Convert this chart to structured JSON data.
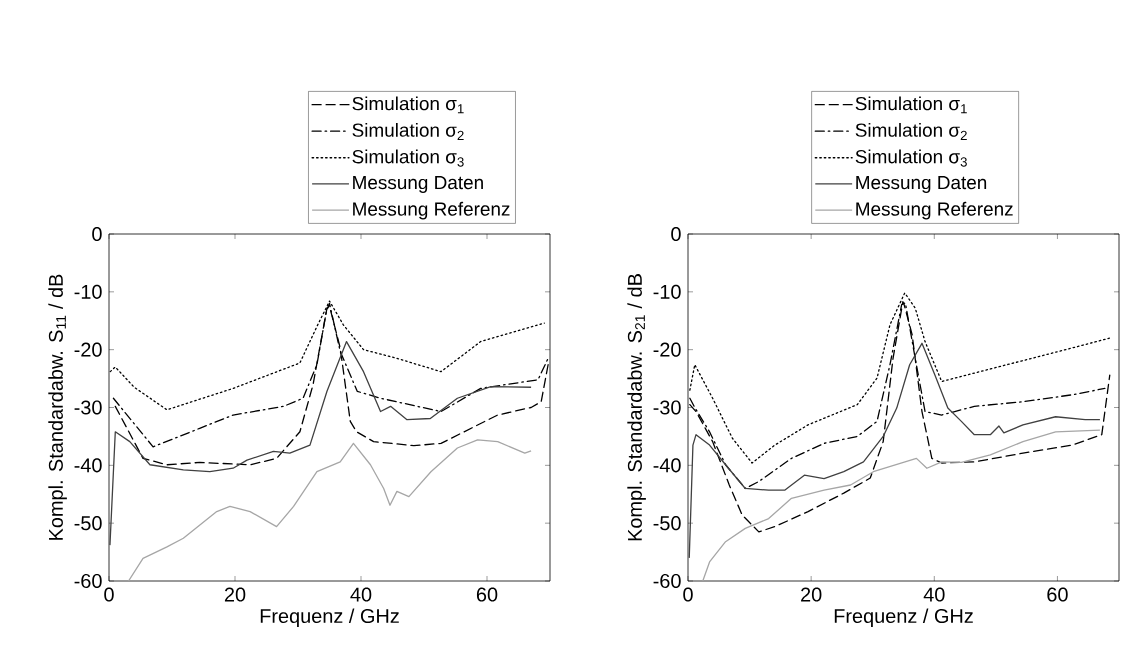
{
  "chart_data": [
    {
      "type": "line",
      "xlabel": "Frequenz / GHz",
      "ylabel": "Kompl. Standardabw. S$_{11}$ / dB",
      "xlim": [
        0,
        70
      ],
      "ylim": [
        -60,
        0
      ],
      "xticks": [
        0,
        20,
        40,
        60
      ],
      "yticks": [
        -60,
        -50,
        -40,
        -30,
        -20,
        -10,
        0
      ],
      "grid": false,
      "legend": "top",
      "marker": "none",
      "series": [
        {
          "name": "Simulation σ$_{1}$",
          "color": "#000000",
          "line_style": "dashed",
          "x": [
            1,
            5.4,
            9.2,
            14.4,
            22.4,
            26.6,
            30.3,
            32.4,
            34.6,
            35,
            36.7,
            38.3,
            39.3,
            42,
            48.4,
            52.7,
            61.7,
            67,
            68.6,
            69.7
          ],
          "values": [
            -29.8,
            -38.8,
            -39.9,
            -39.5,
            -39.9,
            -38.8,
            -34.2,
            -26,
            -12.8,
            -12.5,
            -19.7,
            -32.4,
            -34.2,
            -35.9,
            -36.6,
            -36.2,
            -31.3,
            -30,
            -29,
            -22.6
          ]
        },
        {
          "name": "Simulation σ$_{2}$",
          "color": "#000000",
          "line_style": "dashdot",
          "x": [
            0.7,
            7,
            14.4,
            19.7,
            27.7,
            30.8,
            33,
            34.5,
            35,
            36.7,
            39.4,
            43.1,
            52.7,
            59,
            68.1,
            69.7
          ],
          "values": [
            -28.4,
            -36.8,
            -33.6,
            -31.3,
            -29.8,
            -28.4,
            -22.6,
            -13.4,
            -12,
            -20.3,
            -27.2,
            -28.4,
            -30.7,
            -26.7,
            -25.2,
            -21.5
          ]
        },
        {
          "name": "Simulation σ$_{3}$",
          "color": "#000000",
          "line_style": "dotted",
          "x": [
            0.2,
            1,
            4,
            9.2,
            19.7,
            30.3,
            33,
            35,
            37.2,
            40.4,
            45.7,
            52.7,
            59,
            69.1
          ],
          "values": [
            -23.8,
            -23,
            -26.5,
            -30.4,
            -26.7,
            -22.3,
            -16,
            -11.6,
            -15.7,
            -20,
            -21.5,
            -23.8,
            -18.6,
            -15.4
          ]
        },
        {
          "name": "Messung Daten",
          "color": "#404040",
          "line_style": "solid",
          "x": [
            0.15,
            1,
            3.3,
            6.5,
            11.8,
            16,
            19.7,
            21.9,
            26.1,
            28.7,
            31.9,
            34.6,
            37.7,
            40.4,
            43.1,
            44.7,
            47.3,
            51,
            55.3,
            60.6,
            67
          ],
          "values": [
            -53.8,
            -34.2,
            -35.9,
            -39.9,
            -40.8,
            -41.1,
            -40.5,
            -39.1,
            -37.6,
            -37.9,
            -36.5,
            -27.2,
            -18.6,
            -23.8,
            -30.7,
            -29.8,
            -32.1,
            -31.9,
            -28.4,
            -26.4,
            -26.5
          ]
        },
        {
          "name": "Messung Referenz",
          "color": "#a6a6a6",
          "line_style": "solid",
          "x": [
            3.1,
            5.4,
            9.2,
            11.8,
            17.1,
            19.2,
            22.4,
            26.6,
            29.3,
            33,
            36.7,
            38.8,
            41.5,
            43.6,
            44.6,
            45.7,
            47.6,
            51.1,
            55.3,
            58.5,
            61.7,
            66,
            67
          ],
          "values": [
            -60,
            -56.1,
            -54.1,
            -52.6,
            -48,
            -47.1,
            -48,
            -50.6,
            -47.1,
            -41.1,
            -39.4,
            -36.2,
            -39.9,
            -44,
            -46.9,
            -44.5,
            -45.4,
            -41.1,
            -37,
            -35.6,
            -35.9,
            -37.9,
            -37.5
          ]
        }
      ]
    },
    {
      "type": "line",
      "xlabel": "Frequenz / GHz",
      "ylabel": "Kompl. Standardabw. S$_{21}$ / dB",
      "xlim": [
        0,
        70
      ],
      "ylim": [
        -60,
        0
      ],
      "xticks": [
        0,
        20,
        40,
        60
      ],
      "yticks": [
        -60,
        -50,
        -40,
        -30,
        -20,
        -10,
        0
      ],
      "grid": false,
      "legend": "top",
      "marker": "none",
      "series": [
        {
          "name": "Simulation σ$_{1}$",
          "color": "#000000",
          "line_style": "dashed",
          "x": [
            0.3,
            1.3,
            4,
            6.7,
            8.8,
            11.5,
            14.1,
            19.5,
            25.3,
            29.6,
            31.7,
            33.3,
            34.9,
            35.1,
            36.4,
            38,
            39.6,
            41.2,
            46.5,
            54.4,
            62.4,
            67.2,
            68.5
          ],
          "values": [
            -29.5,
            -30.7,
            -35.9,
            -43.4,
            -48.6,
            -51.5,
            -50.6,
            -48,
            -44.8,
            -42.2,
            -35.9,
            -21.5,
            -11.7,
            -12.2,
            -17.4,
            -30.7,
            -38.8,
            -39.6,
            -39.4,
            -37.9,
            -36.5,
            -34.7,
            -24.4
          ]
        },
        {
          "name": "Simulation σ$_{2}$",
          "color": "#000000",
          "line_style": "dashdot",
          "x": [
            0.3,
            1.1,
            3.5,
            6.1,
            9.3,
            11.5,
            16.8,
            22.1,
            27.5,
            30.7,
            32.8,
            34.7,
            35.3,
            36.9,
            38.5,
            41.2,
            46.5,
            54.4,
            62.4,
            67.7
          ],
          "values": [
            -28.4,
            -30,
            -34.2,
            -39.9,
            -44,
            -42.8,
            -38.8,
            -36.2,
            -35,
            -32.4,
            -22.6,
            -12.2,
            -11.9,
            -21.5,
            -30.7,
            -31.3,
            -29.8,
            -29,
            -27.8,
            -26.7
          ]
        },
        {
          "name": "Simulation σ$_{3}$",
          "color": "#000000",
          "line_style": "dotted",
          "x": [
            0.3,
            1.1,
            4,
            7.2,
            10.4,
            14.1,
            19.5,
            27.5,
            30.7,
            32.8,
            35.2,
            36.9,
            38.5,
            41.2,
            51.8,
            62.4,
            68.5
          ],
          "values": [
            -27,
            -22.6,
            -28.4,
            -35.3,
            -39.6,
            -36.5,
            -33,
            -29.5,
            -24.9,
            -15.7,
            -10.2,
            -12.8,
            -18.6,
            -25.5,
            -22.6,
            -19.7,
            -18
          ]
        },
        {
          "name": "Messung Daten",
          "color": "#404040",
          "line_style": "solid",
          "x": [
            0.2,
            0.8,
            1.3,
            3.5,
            6.1,
            9.3,
            13.1,
            15.7,
            18.9,
            22.1,
            25.3,
            28.5,
            31.7,
            33.9,
            36,
            38,
            40.1,
            42.2,
            44.4,
            46.5,
            49.1,
            50.5,
            51.3,
            54.4,
            59.7,
            64.5,
            66.9
          ],
          "values": [
            -56,
            -36.5,
            -34.7,
            -36.5,
            -39.9,
            -44,
            -44.3,
            -44.3,
            -41.7,
            -42.3,
            -41.1,
            -39.4,
            -35,
            -30.1,
            -22.6,
            -18.9,
            -24.4,
            -30.1,
            -32.4,
            -34.7,
            -34.7,
            -33.2,
            -34.4,
            -33,
            -31.6,
            -32.1,
            -32.1
          ]
        },
        {
          "name": "Messung Referenz",
          "color": "#a6a6a6",
          "line_style": "solid",
          "x": [
            2.4,
            3.5,
            6.1,
            9.3,
            13.1,
            16.8,
            22.1,
            26.4,
            30.1,
            37.1,
            38.8,
            41.2,
            44.4,
            49.1,
            54.4,
            59.7,
            66.9
          ],
          "values": [
            -60,
            -56.7,
            -53.2,
            -50.9,
            -49.2,
            -45.7,
            -44.3,
            -43.4,
            -41.1,
            -38.8,
            -40.5,
            -39.4,
            -39.5,
            -38.2,
            -35.9,
            -34.2,
            -33.9
          ]
        }
      ]
    }
  ]
}
